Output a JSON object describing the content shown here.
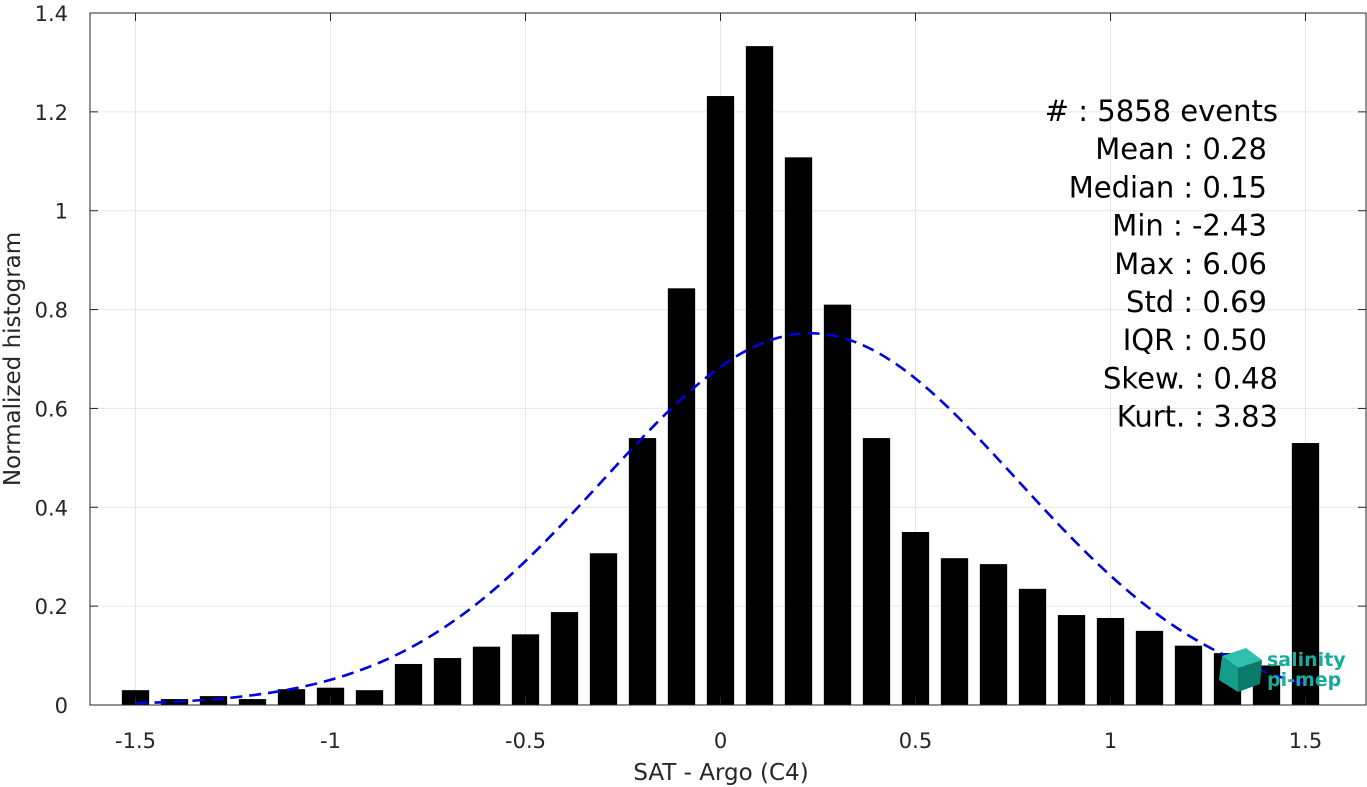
{
  "chart_data": {
    "type": "bar",
    "xlabel": "SAT - Argo (C4)",
    "ylabel": "Normalized histogram",
    "xlim": [
      -1.62,
      1.62
    ],
    "ylim": [
      0,
      1.4
    ],
    "xticks": [
      -1.5,
      -1,
      -0.5,
      0,
      0.5,
      1,
      1.5
    ],
    "xtick_labels": [
      "-1.5",
      "-1",
      "-0.5",
      "0",
      "0.5",
      "1",
      "1.5"
    ],
    "yticks": [
      0,
      0.2,
      0.4,
      0.6,
      0.8,
      1,
      1.2,
      1.4
    ],
    "ytick_labels": [
      "0",
      "0.2",
      "0.4",
      "0.6",
      "0.8",
      "1",
      "1.2",
      "1.4"
    ],
    "grid": true,
    "bar_color": "#000000",
    "bar_width": 0.07,
    "x": [
      -1.5,
      -1.4,
      -1.3,
      -1.2,
      -1.1,
      -1.0,
      -0.9,
      -0.8,
      -0.7,
      -0.6,
      -0.5,
      -0.4,
      -0.3,
      -0.2,
      -0.1,
      0.0,
      0.1,
      0.2,
      0.3,
      0.4,
      0.5,
      0.6,
      0.7,
      0.8,
      0.9,
      1.0,
      1.1,
      1.2,
      1.3,
      1.4,
      1.5
    ],
    "values": [
      0.03,
      0.012,
      0.018,
      0.012,
      0.032,
      0.035,
      0.03,
      0.083,
      0.095,
      0.118,
      0.143,
      0.188,
      0.307,
      0.54,
      0.843,
      1.232,
      1.333,
      1.108,
      0.81,
      0.54,
      0.35,
      0.297,
      0.285,
      0.235,
      0.182,
      0.176,
      0.15,
      0.12,
      0.105,
      0.08,
      0.53
    ],
    "gaussian": {
      "mean": 0.23,
      "std": 0.53,
      "peak": 0.752,
      "color": "#0000dd",
      "style": "dashed"
    },
    "stats": [
      {
        "label": "#  : 5858 events"
      },
      {
        "label": "Mean : 0.28"
      },
      {
        "label": "Median : 0.15"
      },
      {
        "label": "Min : -2.43"
      },
      {
        "label": "Max : 6.06"
      },
      {
        "label": "Std : 0.69"
      },
      {
        "label": "IQR : 0.50"
      },
      {
        "label": "Skew. : 0.48"
      },
      {
        "label": "Kurt. : 3.83"
      }
    ]
  },
  "logo": {
    "line1": "salinity",
    "line2": "pi-mep",
    "color": "#1aa99a",
    "icon": "cube-logo-icon"
  }
}
